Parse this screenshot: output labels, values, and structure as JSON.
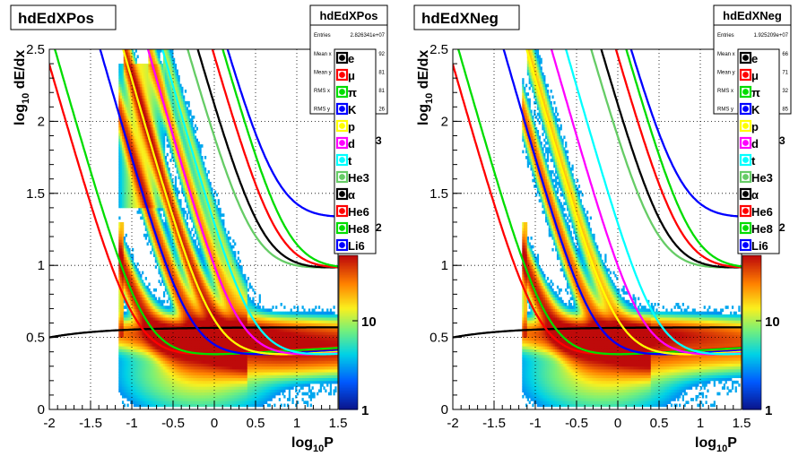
{
  "chart_data": [
    {
      "type": "heatmap",
      "title": "hdEdXPos",
      "xlabel": "log10P",
      "ylabel": "log10 dE/dx",
      "xlim": [
        -2,
        1.5
      ],
      "ylim": [
        0,
        2.5
      ],
      "xticks": [
        "-2",
        "-1.5",
        "-1",
        "-0.5",
        "0",
        "0.5",
        "1",
        "1.5"
      ],
      "yticks": [
        "0",
        "0.5",
        "1",
        "1.5",
        "2",
        "2.5"
      ],
      "colorbar": {
        "scale": "log",
        "labels": [
          "1",
          "10"
        ],
        "partial_labels": [
          "3",
          "2"
        ]
      },
      "grid": true,
      "legend_placement": "top-right",
      "stats": {
        "name": "hdEdXPos",
        "entries_label": "Entries",
        "entries": "2.826341e+07",
        "rows": [
          "Mean x",
          "Mean y",
          "RMS x",
          "RMS y"
        ],
        "row_tails": [
          "92",
          "81",
          "81",
          "26"
        ]
      },
      "series": [
        {
          "name": "e",
          "color": "#000000"
        },
        {
          "name": "μ",
          "color": "#ff0000"
        },
        {
          "name": "π",
          "color": "#00dd00"
        },
        {
          "name": "K",
          "color": "#0000ff"
        },
        {
          "name": "p",
          "color": "#ffff00"
        },
        {
          "name": "d",
          "color": "#ff00ff"
        },
        {
          "name": "t",
          "color": "#00ffff"
        },
        {
          "name": "He3",
          "color": "#66cc66"
        },
        {
          "name": "α",
          "color": "#000000"
        },
        {
          "name": "He6",
          "color": "#ff0000"
        },
        {
          "name": "He8",
          "color": "#00dd00"
        },
        {
          "name": "Li6",
          "color": "#0000ff"
        }
      ]
    },
    {
      "type": "heatmap",
      "title": "hdEdXNeg",
      "xlabel": "log10P",
      "ylabel": "log10 dE/dx",
      "xlim": [
        -2,
        1.5
      ],
      "ylim": [
        0,
        2.5
      ],
      "xticks": [
        "-2",
        "-1.5",
        "-1",
        "-0.5",
        "0",
        "0.5",
        "1",
        "1.5"
      ],
      "yticks": [
        "0",
        "0.5",
        "1",
        "1.5",
        "2",
        "2.5"
      ],
      "colorbar": {
        "scale": "log",
        "labels": [
          "1",
          "10"
        ],
        "partial_labels": [
          "3",
          "2"
        ]
      },
      "grid": true,
      "legend_placement": "top-right",
      "stats": {
        "name": "hdEdXNeg",
        "entries_label": "Entries",
        "entries": "1.925209e+07",
        "rows": [
          "Mean x",
          "Mean y",
          "RMS x",
          "RMS y"
        ],
        "row_tails": [
          "66",
          "71",
          "32",
          "85"
        ]
      },
      "series": [
        {
          "name": "e",
          "color": "#000000"
        },
        {
          "name": "μ",
          "color": "#ff0000"
        },
        {
          "name": "π",
          "color": "#00dd00"
        },
        {
          "name": "K",
          "color": "#0000ff"
        },
        {
          "name": "p",
          "color": "#ffff00"
        },
        {
          "name": "d",
          "color": "#ff00ff"
        },
        {
          "name": "t",
          "color": "#00ffff"
        },
        {
          "name": "He3",
          "color": "#66cc66"
        },
        {
          "name": "α",
          "color": "#000000"
        },
        {
          "name": "He6",
          "color": "#ff0000"
        },
        {
          "name": "He8",
          "color": "#00dd00"
        },
        {
          "name": "Li6",
          "color": "#0000ff"
        }
      ]
    }
  ]
}
